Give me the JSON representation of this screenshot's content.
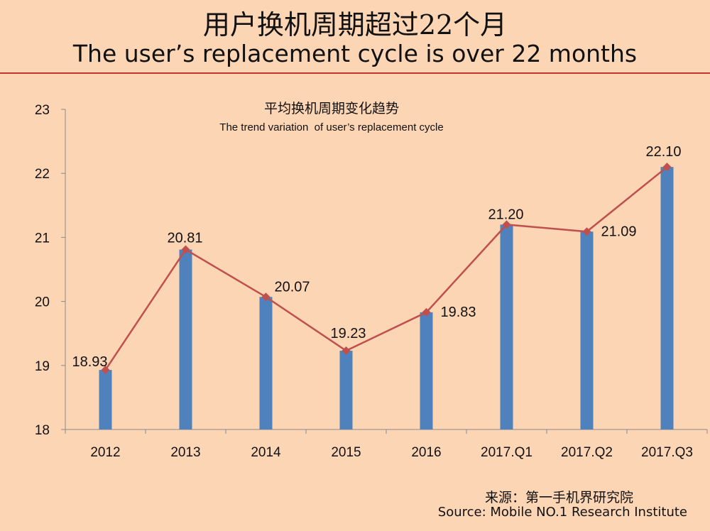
{
  "header": {
    "title_cn": "用户换机周期超过22个月",
    "title_en": "The user’s replacement cycle is over 22 months"
  },
  "chart_data": {
    "type": "bar",
    "title": "平均换机周期变化趋势",
    "subtitle": "The trend variation  of user’s replacement cycle",
    "categories": [
      "2012",
      "2013",
      "2014",
      "2015",
      "2016",
      "2017.Q1",
      "2017.Q2",
      "2017.Q3"
    ],
    "values": [
      18.93,
      20.81,
      20.07,
      19.23,
      19.83,
      21.2,
      21.09,
      22.1
    ],
    "labels": [
      "18.93",
      "20.81",
      "20.07",
      "19.23",
      "19.83",
      "21.20",
      "21.09",
      "22.10"
    ],
    "overlay_line": true,
    "ylim": [
      18,
      23
    ],
    "yticks": [
      "18",
      "19",
      "20",
      "21",
      "22",
      "23"
    ],
    "bar_color": "#4F81BD",
    "line_color": "#C0504D",
    "marker_color": "#C0504D",
    "xlabel": "",
    "ylabel": ""
  },
  "source": {
    "cn": "来源：第一手机界研究院",
    "en": "Source: Mobile NO.1 Research Institute"
  }
}
